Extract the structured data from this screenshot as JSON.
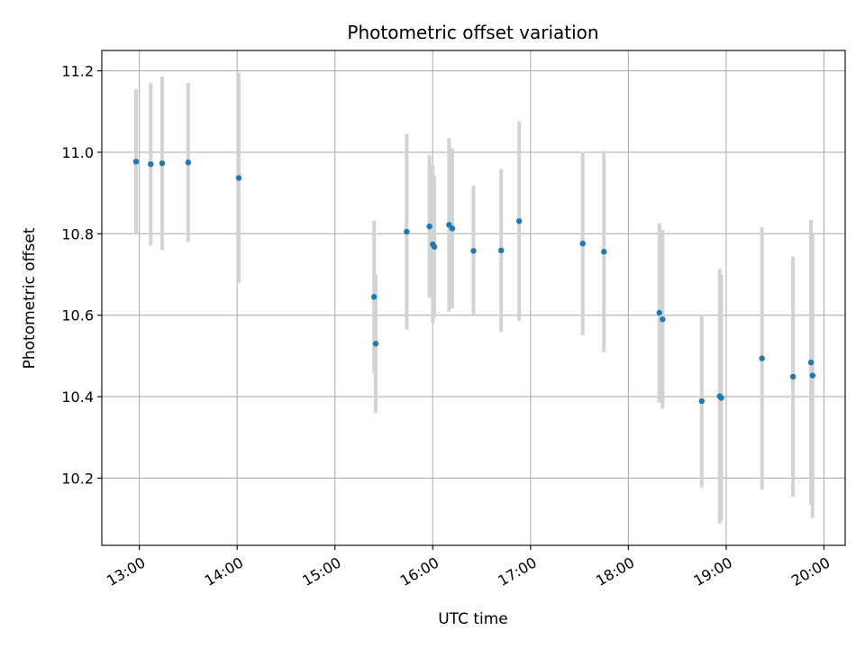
{
  "chart_data": {
    "type": "scatter",
    "title": "Photometric offset variation",
    "xlabel": "UTC time",
    "ylabel": "Photometric offset",
    "x_unit": "UTC time (HH:MM)",
    "xlim": [
      "12:37",
      "20:13"
    ],
    "ylim": [
      10.035,
      11.25
    ],
    "x_ticks": [
      "13:00",
      "14:00",
      "15:00",
      "16:00",
      "17:00",
      "18:00",
      "19:00",
      "20:00"
    ],
    "y_ticks": [
      10.2,
      10.4,
      10.6,
      10.8,
      11.0,
      11.2
    ],
    "y_tick_labels": [
      "10.2",
      "10.4",
      "10.6",
      "10.8",
      "11.0",
      "11.2"
    ],
    "grid": true,
    "point_color": "#1f77b4",
    "errorbar_color": "#d3d3d3",
    "points": [
      {
        "x": "12:58",
        "y": 10.977,
        "err": 0.178
      },
      {
        "x": "13:07",
        "y": 10.971,
        "err": 0.2
      },
      {
        "x": "13:14",
        "y": 10.973,
        "err": 0.213
      },
      {
        "x": "13:30",
        "y": 10.975,
        "err": 0.195
      },
      {
        "x": "14:01",
        "y": 10.937,
        "err": 0.258
      },
      {
        "x": "15:24",
        "y": 10.645,
        "err": 0.187
      },
      {
        "x": "15:25",
        "y": 10.53,
        "err": 0.17
      },
      {
        "x": "15:44",
        "y": 10.805,
        "err": 0.24
      },
      {
        "x": "15:58",
        "y": 10.818,
        "err": 0.175
      },
      {
        "x": "16:00",
        "y": 10.774,
        "err": 0.193
      },
      {
        "x": "16:01",
        "y": 10.768,
        "err": 0.175
      },
      {
        "x": "16:10",
        "y": 10.822,
        "err": 0.213
      },
      {
        "x": "16:12",
        "y": 10.813,
        "err": 0.197
      },
      {
        "x": "16:25",
        "y": 10.758,
        "err": 0.16
      },
      {
        "x": "16:42",
        "y": 10.759,
        "err": 0.2
      },
      {
        "x": "16:53",
        "y": 10.831,
        "err": 0.245
      },
      {
        "x": "17:32",
        "y": 10.776,
        "err": 0.225
      },
      {
        "x": "17:45",
        "y": 10.756,
        "err": 0.247
      },
      {
        "x": "18:19",
        "y": 10.606,
        "err": 0.22
      },
      {
        "x": "18:21",
        "y": 10.59,
        "err": 0.22
      },
      {
        "x": "18:45",
        "y": 10.389,
        "err": 0.212
      },
      {
        "x": "18:56",
        "y": 10.401,
        "err": 0.313
      },
      {
        "x": "18:57",
        "y": 10.397,
        "err": 0.302
      },
      {
        "x": "19:22",
        "y": 10.494,
        "err": 0.322
      },
      {
        "x": "19:41",
        "y": 10.449,
        "err": 0.295
      },
      {
        "x": "19:52",
        "y": 10.484,
        "err": 0.35
      },
      {
        "x": "19:53",
        "y": 10.452,
        "err": 0.35
      }
    ]
  }
}
